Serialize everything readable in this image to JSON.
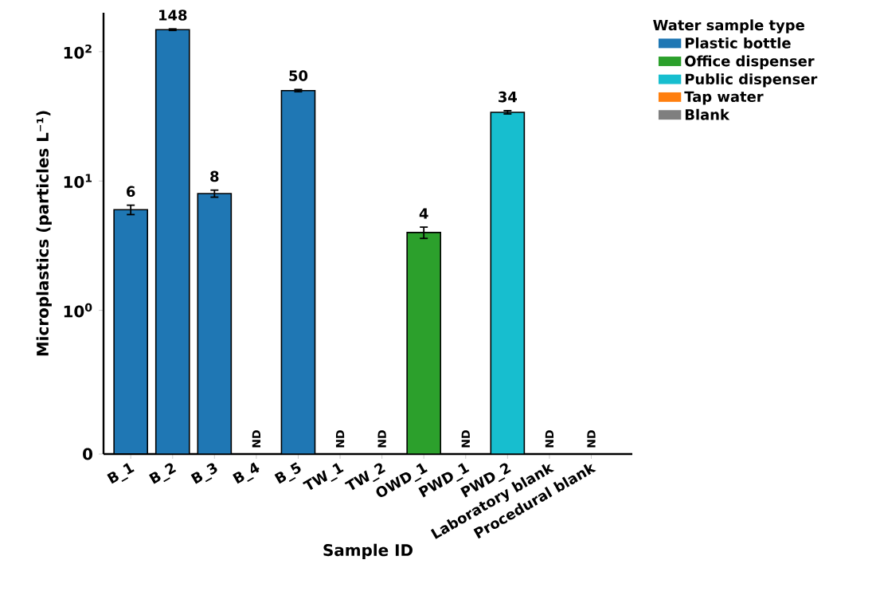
{
  "chart_data": {
    "type": "bar",
    "xlabel": "Sample ID",
    "ylabel": "Microplastics (particles L⁻¹)",
    "legend_title": "Water sample type",
    "legend": "top right",
    "categories": [
      "B_1",
      "B_2",
      "B_3",
      "B_4",
      "B_5",
      "TW_1",
      "TW_2",
      "OWD_1",
      "PWD_1",
      "PWD_2",
      "Laboratory blank",
      "Procedural blank"
    ],
    "log": "y",
    "ylim": [
      0,
      200
    ],
    "yticks": [
      0,
      {
        "value": 1,
        "label": "10$^{0}$"
      },
      {
        "value": 10,
        "label": "10$^{1}$"
      },
      {
        "value": 100,
        "label": "10$^{2}$"
      }
    ],
    "series": [
      {
        "name": "Plastic bottle",
        "color": "#1f77b4",
        "values": [
          6,
          148,
          8,
          0,
          50,
          null,
          null,
          null,
          null,
          null,
          null,
          null
        ],
        "errors": [
          0.5,
          2,
          0.5,
          null,
          1,
          null,
          null,
          null,
          null,
          null,
          null,
          null
        ],
        "value_labels": [
          "6",
          "148",
          "8",
          "ND",
          "50",
          null,
          null,
          null,
          null,
          null,
          null,
          null
        ]
      },
      {
        "name": "Office dispenser",
        "color": "#2ca02c",
        "values": [
          null,
          null,
          null,
          null,
          null,
          null,
          null,
          4,
          0,
          null,
          null,
          null
        ],
        "errors": [
          null,
          null,
          null,
          null,
          null,
          null,
          null,
          0.4,
          null,
          null,
          null,
          null
        ],
        "value_labels": [
          null,
          null,
          null,
          null,
          null,
          null,
          null,
          "4",
          "ND",
          null,
          null,
          null
        ]
      },
      {
        "name": "Public dispenser",
        "color": "#17becf",
        "values": [
          null,
          null,
          null,
          null,
          null,
          null,
          null,
          null,
          null,
          34,
          null,
          null
        ],
        "errors": [
          null,
          null,
          null,
          null,
          null,
          null,
          null,
          null,
          null,
          1,
          null,
          null
        ],
        "value_labels": [
          null,
          null,
          null,
          null,
          null,
          null,
          null,
          null,
          null,
          "34",
          null,
          null
        ]
      },
      {
        "name": "Tap water",
        "color": "#ff7f0e",
        "values": [
          null,
          null,
          null,
          null,
          null,
          0,
          0,
          null,
          null,
          null,
          null,
          null
        ],
        "value_labels": [
          null,
          null,
          null,
          null,
          null,
          "ND",
          "ND",
          null,
          null,
          null,
          null,
          null
        ]
      },
      {
        "name": "Blank",
        "color": "#7f7f7f",
        "values": [
          null,
          null,
          null,
          null,
          null,
          null,
          null,
          null,
          null,
          null,
          0,
          0
        ],
        "value_labels": [
          null,
          null,
          null,
          null,
          null,
          null,
          null,
          null,
          null,
          null,
          "ND",
          "ND"
        ]
      }
    ]
  }
}
